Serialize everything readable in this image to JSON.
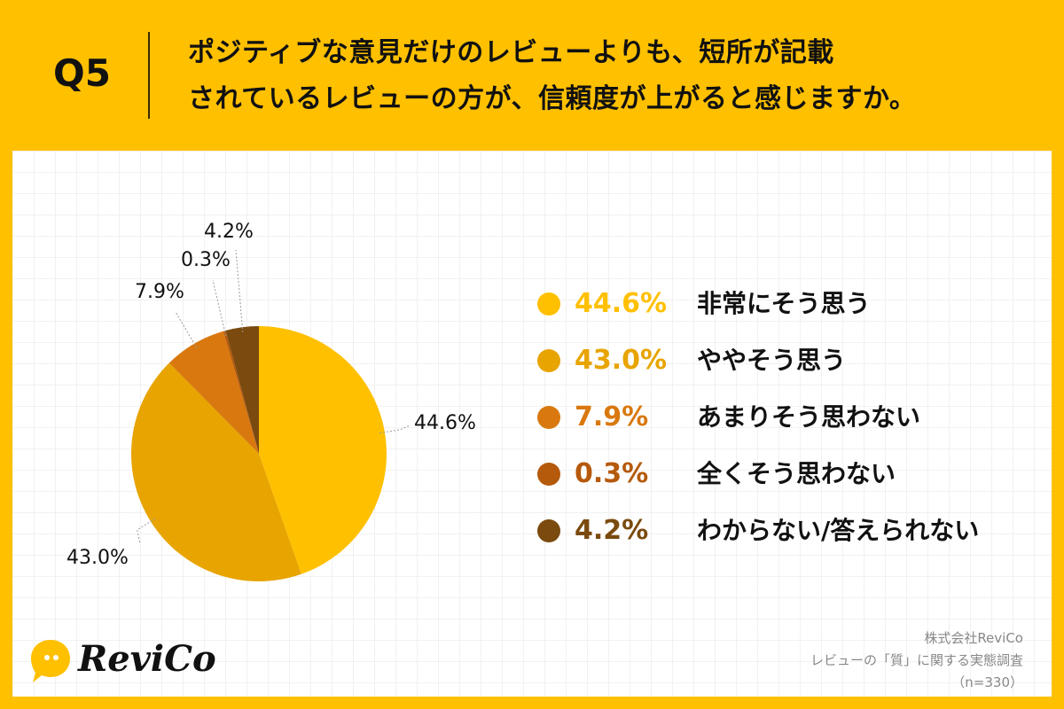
{
  "header": {
    "question_number": "Q5",
    "question_line1": "ポジティブな意見だけのレビューよりも、短所が記載",
    "question_line2": "されているレビューの方が、信頼度が上がると感じますか。"
  },
  "chart_data": {
    "type": "pie",
    "title": "ポジティブな意見だけのレビューよりも、短所が記載されているレビューの方が、信頼度が上がると感じますか。",
    "categories": [
      "非常にそう思う",
      "ややそう思う",
      "あまりそう思わない",
      "全くそう思わない",
      "わからない/答えられない"
    ],
    "values": [
      44.6,
      43.0,
      7.9,
      0.3,
      4.2
    ],
    "labels": [
      "44.6%",
      "43.0%",
      "7.9%",
      "0.3%",
      "4.2%"
    ],
    "colors": [
      "#FFC000",
      "#E8A400",
      "#D9780F",
      "#B5590B",
      "#7A4A0E"
    ],
    "start": "12 o'clock",
    "direction": "clockwise",
    "legend_position": "right"
  },
  "footer": {
    "company": "株式会社ReviCo",
    "survey": "レビューの「質」に関する実態調査",
    "sample": "（n=330）"
  },
  "logo": {
    "text": "ReviCo",
    "icon": "speech-bubble-icon"
  }
}
